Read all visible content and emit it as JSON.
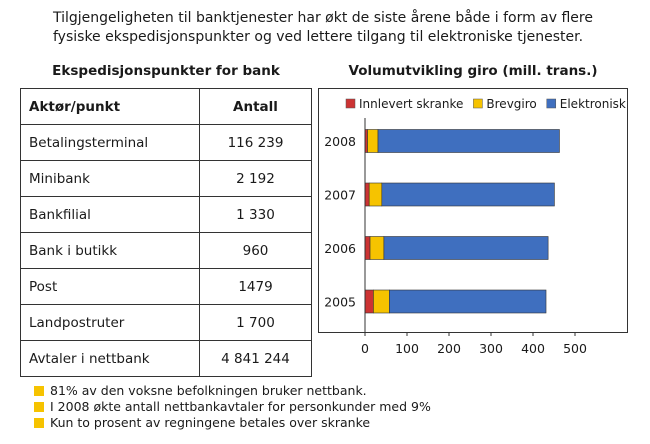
{
  "intro": {
    "line1": "Tilgjengeligheten til banktjenester har økt de siste årene både i form av flere",
    "line2": "fysiske ekspedisjonspunkter og ved lettere tilgang til elektroniske tjenester."
  },
  "table": {
    "title": "Ekspedisjonspunkter for bank",
    "headers": [
      "Aktør/punkt",
      "Antall"
    ],
    "rows": [
      {
        "label": "Betalingsterminal",
        "value": "116 239"
      },
      {
        "label": "Minibank",
        "value": "2 192"
      },
      {
        "label": "Bankfilial",
        "value": "1 330"
      },
      {
        "label": "Bank i butikk",
        "value": "960"
      },
      {
        "label": "Post",
        "value": "1479"
      },
      {
        "label": "Landpostruter",
        "value": "1 700"
      },
      {
        "label": "Avtaler i nettbank",
        "value": "4 841 244"
      }
    ]
  },
  "chart_data": {
    "type": "bar",
    "orientation": "horizontal",
    "stacked": true,
    "title": "Volumutvikling giro (mill. trans.)",
    "categories": [
      "2008",
      "2007",
      "2006",
      "2005"
    ],
    "series": [
      {
        "name": "Innlevert skranke",
        "color": "#cc3333",
        "values": [
          6,
          10,
          12,
          20
        ]
      },
      {
        "name": "Brevgiro",
        "color": "#f6c300",
        "values": [
          25,
          30,
          33,
          38
        ]
      },
      {
        "name": "Elektronisk",
        "color": "#3f6fbf",
        "values": [
          432,
          411,
          391,
          373
        ]
      }
    ],
    "xlim": [
      0,
      500
    ],
    "xticks": [
      0,
      100,
      200,
      300,
      400,
      500
    ],
    "legend": "top",
    "grid": false
  },
  "notes": [
    "81% av den voksne befolkningen bruker nettbank.",
    "I 2008 økte antall nettbankavtaler for personkunder med 9%",
    "Kun to prosent av regningene betales over skranke"
  ]
}
